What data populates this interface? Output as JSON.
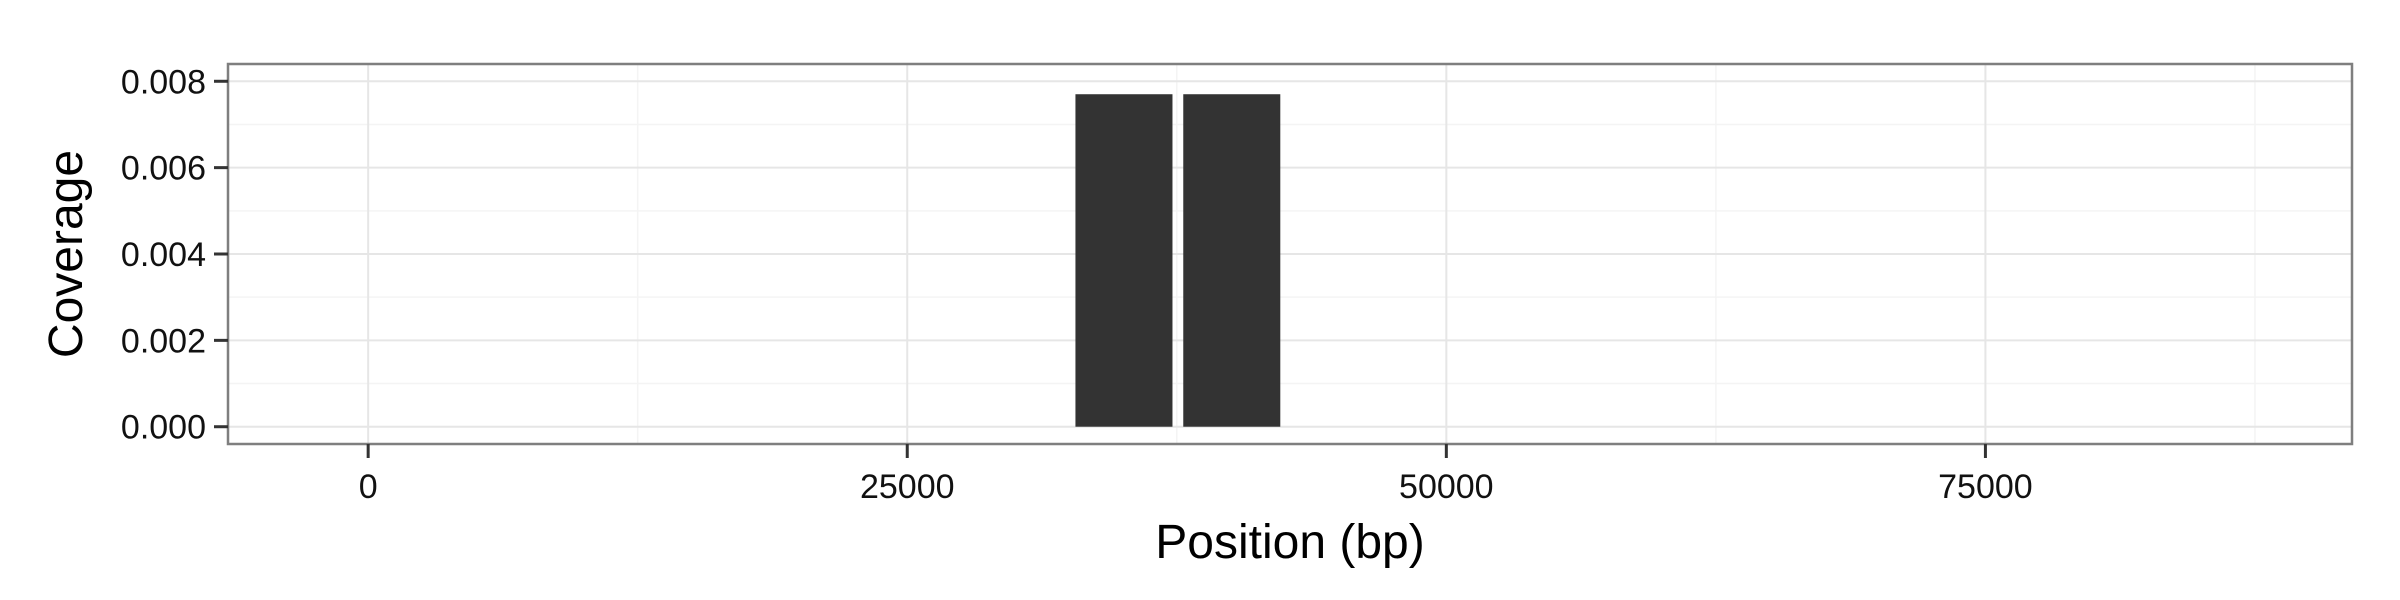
{
  "chart_data": {
    "type": "bar",
    "xlabel": "Position (bp)",
    "ylabel": "Coverage",
    "xlim": [
      -6500,
      92000
    ],
    "ylim": [
      -0.0004,
      0.0084
    ],
    "x_ticks": [
      0,
      25000,
      50000,
      75000
    ],
    "x_tick_labels": [
      "0",
      "25000",
      "50000",
      "75000"
    ],
    "y_ticks": [
      0.0,
      0.002,
      0.004,
      0.006,
      0.008
    ],
    "y_tick_labels": [
      "0.000",
      "0.002",
      "0.004",
      "0.006",
      "0.008"
    ],
    "bars": [
      {
        "x_start": 32800,
        "x_end": 37300,
        "value": 0.0077
      },
      {
        "x_start": 37800,
        "x_end": 42300,
        "value": 0.0077
      }
    ],
    "grid": true,
    "bar_color": "#333333"
  }
}
